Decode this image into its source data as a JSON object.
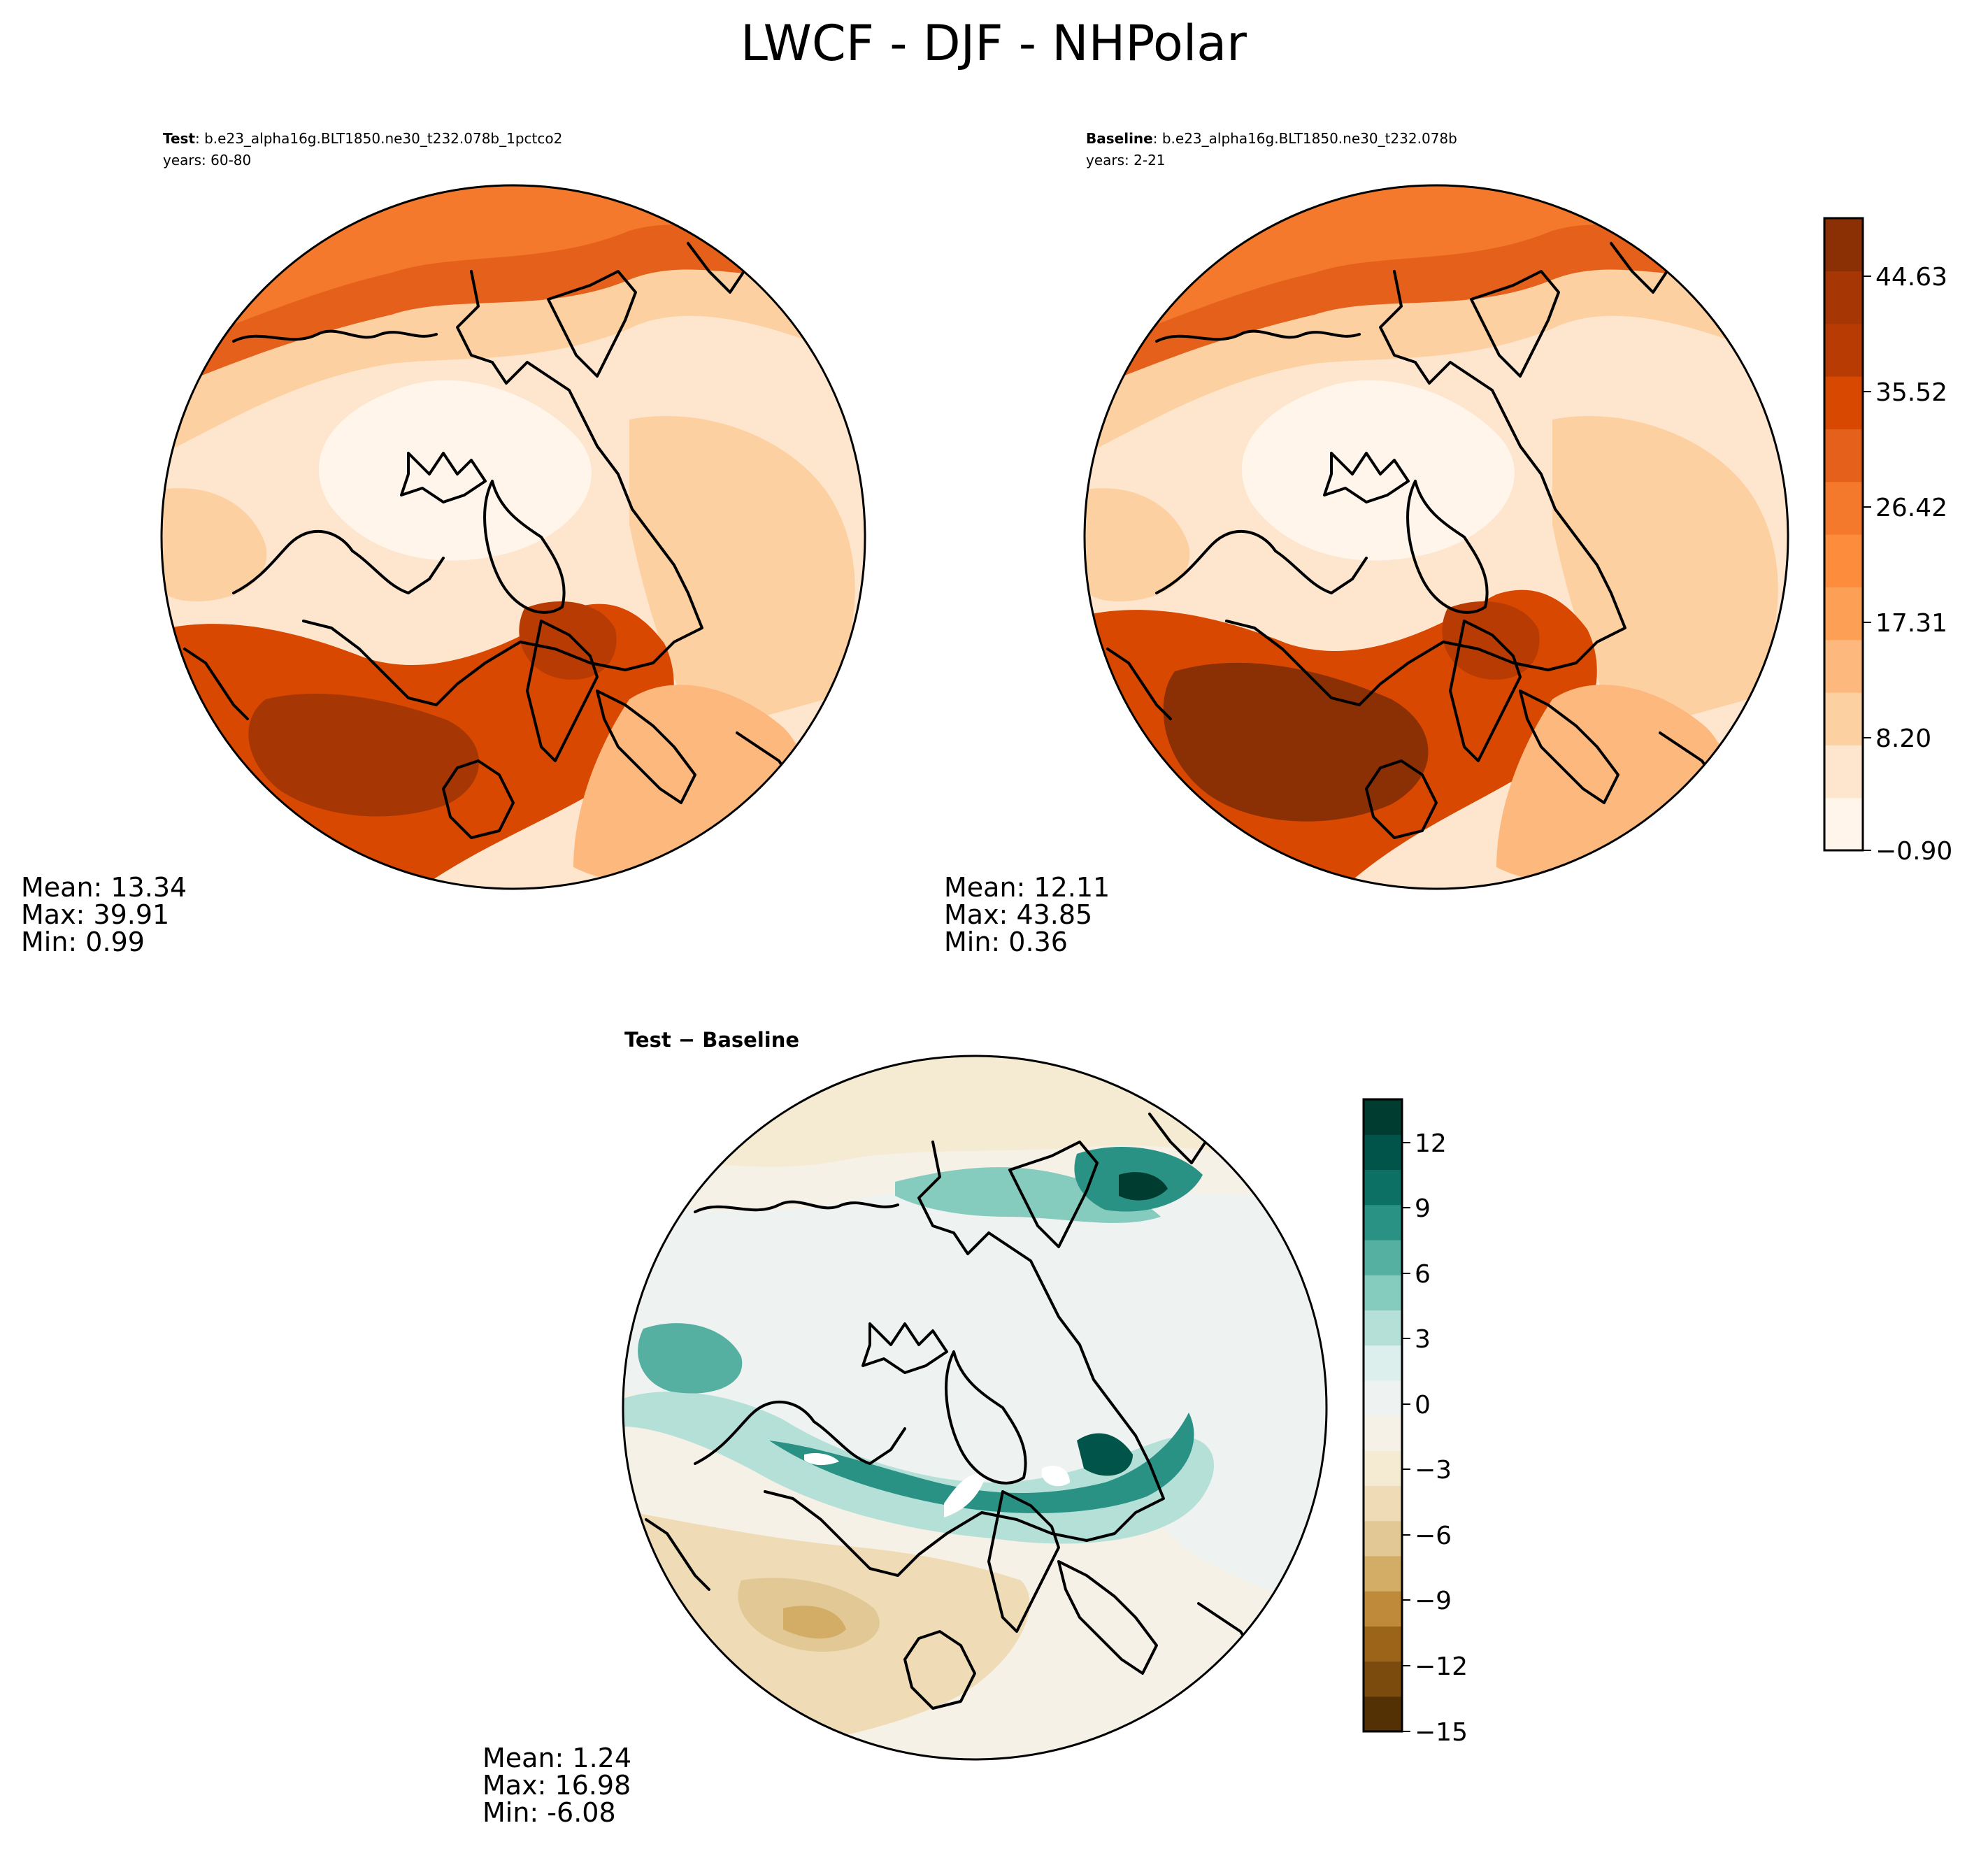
{
  "title": "LWCF - DJF - NHPolar",
  "chart_data": [
    {
      "type": "heatmap",
      "id": "test",
      "label_bold": "Test",
      "label_rest": ": b.e23_alpha16g.BLT1850.ne30_t232.078b_1pctco2",
      "years": "years: 60-80",
      "stats": {
        "mean": "Mean: 13.34",
        "max": "Max: 39.91",
        "min": "Min:  0.99"
      },
      "values": {
        "mean": 13.34,
        "max": 39.91,
        "min": 0.99
      }
    },
    {
      "type": "heatmap",
      "id": "baseline",
      "label_bold": "Baseline",
      "label_rest": ": b.e23_alpha16g.BLT1850.ne30_t232.078b",
      "years": "years: 2-21",
      "stats": {
        "mean": "Mean: 12.11",
        "max": "Max: 43.85",
        "min": "Min:  0.36"
      },
      "values": {
        "mean": 12.11,
        "max": 43.85,
        "min": 0.36
      }
    },
    {
      "type": "heatmap",
      "id": "difference",
      "label_bold": "Test − Baseline",
      "stats": {
        "mean": "Mean:  1.24",
        "max": "Max: 16.98",
        "min": "Min: -6.08"
      },
      "values": {
        "mean": 1.24,
        "max": 16.98,
        "min": -6.08
      }
    }
  ],
  "colorbars": {
    "main": {
      "tick_labels": [
        "44.63",
        "35.52",
        "26.42",
        "17.31",
        "8.20",
        "−0.90"
      ],
      "range": [
        -0.9,
        49.18
      ],
      "colors": [
        "#fff5eb",
        "#fee6ce",
        "#fdd0a2",
        "#fdb97d",
        "#fd9f54",
        "#fd8d3c",
        "#f4792c",
        "#e5601a",
        "#d94801",
        "#b83b03",
        "#a63603",
        "#8b2f04"
      ]
    },
    "diff": {
      "tick_labels": [
        "12",
        "9",
        "6",
        "3",
        "0",
        "−3",
        "−6",
        "−9",
        "−12",
        "−15"
      ],
      "range": [
        -15,
        14
      ],
      "colors": [
        "#543005",
        "#7b4b0e",
        "#9c6418",
        "#bf8a3a",
        "#d3ac66",
        "#e2c895",
        "#efdcb6",
        "#f5ead2",
        "#f6f1e6",
        "#eef3f2",
        "#dcefec",
        "#b5e0d8",
        "#85cbbe",
        "#56b0a2",
        "#2a9185",
        "#0c7065",
        "#01544a",
        "#003c30"
      ]
    }
  }
}
